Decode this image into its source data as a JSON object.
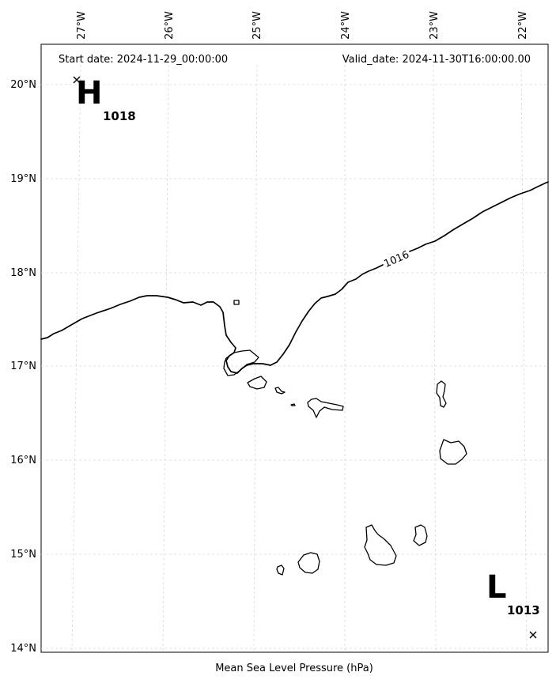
{
  "header": {
    "start_date": "Start date: 2024-11-29_00:00:00",
    "valid_date": "Valid_date: 2024-11-30T16:00:00.00"
  },
  "footer": {
    "caption": "Mean Sea Level Pressure (hPa)"
  },
  "axes": {
    "lon_ticks": [
      "27°W",
      "26°W",
      "25°W",
      "24°W",
      "23°W",
      "22°W"
    ],
    "lat_ticks": [
      "20°N",
      "19°N",
      "18°N",
      "17°N",
      "16°N",
      "15°N",
      "14°N"
    ]
  },
  "isobar": {
    "label": "1016",
    "value": 1016
  },
  "pressure_centers": [
    {
      "id": "high",
      "letter": "H",
      "value": "1018"
    },
    {
      "id": "low",
      "letter": "L",
      "value": "1013"
    }
  ]
}
